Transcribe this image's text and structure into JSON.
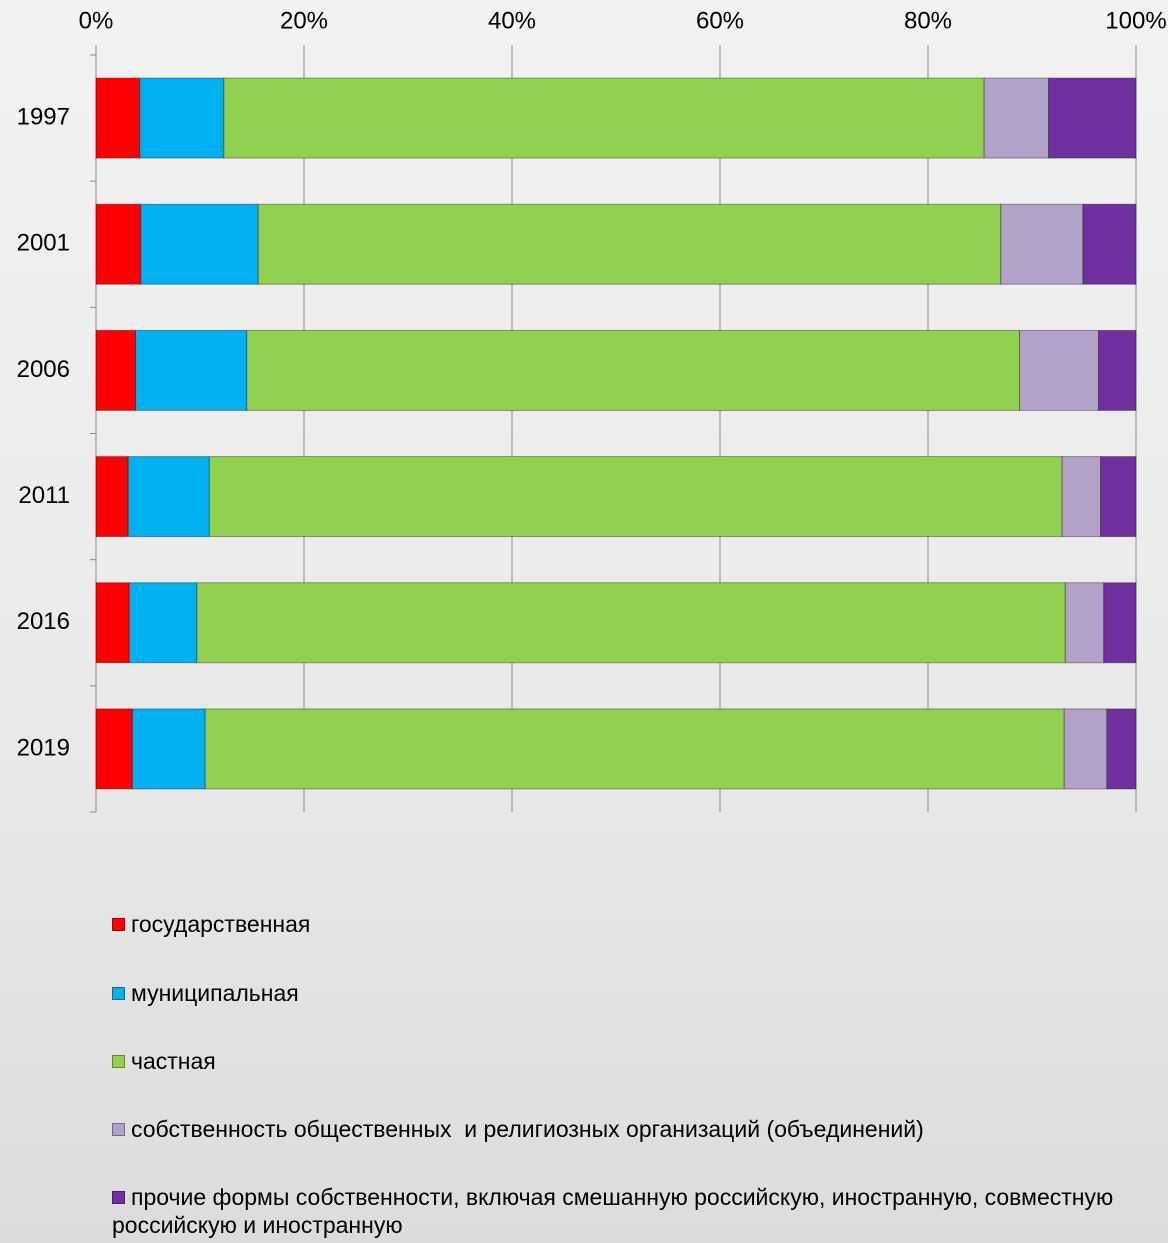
{
  "chart_data": {
    "type": "stacked-bar-horizontal",
    "categories": [
      "1997",
      "2001",
      "2006",
      "2011",
      "2016",
      "2019"
    ],
    "series": [
      {
        "name": "государственная",
        "color": "#ff0000",
        "values": [
          4.2,
          4.3,
          3.8,
          3.1,
          3.2,
          3.5
        ]
      },
      {
        "name": "муниципальная",
        "color": "#00b0f0",
        "values": [
          8.1,
          11.3,
          10.7,
          7.8,
          6.5,
          7.0
        ]
      },
      {
        "name": "частная",
        "color": "#92d050",
        "values": [
          73.1,
          71.4,
          74.3,
          82.0,
          83.5,
          82.6
        ]
      },
      {
        "name": "собственность общественных  и религиозных организаций (объединений)",
        "color": "#b3a2c7",
        "values": [
          6.2,
          7.9,
          7.6,
          3.7,
          3.7,
          4.1
        ]
      },
      {
        "name": "прочие формы собственности, включая смешанную российскую, иностранную, совместную российскую и иностранную",
        "color": "#7030a0",
        "values": [
          8.4,
          5.1,
          3.6,
          3.4,
          3.1,
          2.8
        ]
      }
    ],
    "xlim": [
      0,
      100
    ],
    "xticks": [
      {
        "value": 0,
        "label": "0%"
      },
      {
        "value": 20,
        "label": "20%"
      },
      {
        "value": 40,
        "label": "40%"
      },
      {
        "value": 60,
        "label": "60%"
      },
      {
        "value": 80,
        "label": "80%"
      },
      {
        "value": 100,
        "label": "100%"
      }
    ],
    "grid": true
  }
}
